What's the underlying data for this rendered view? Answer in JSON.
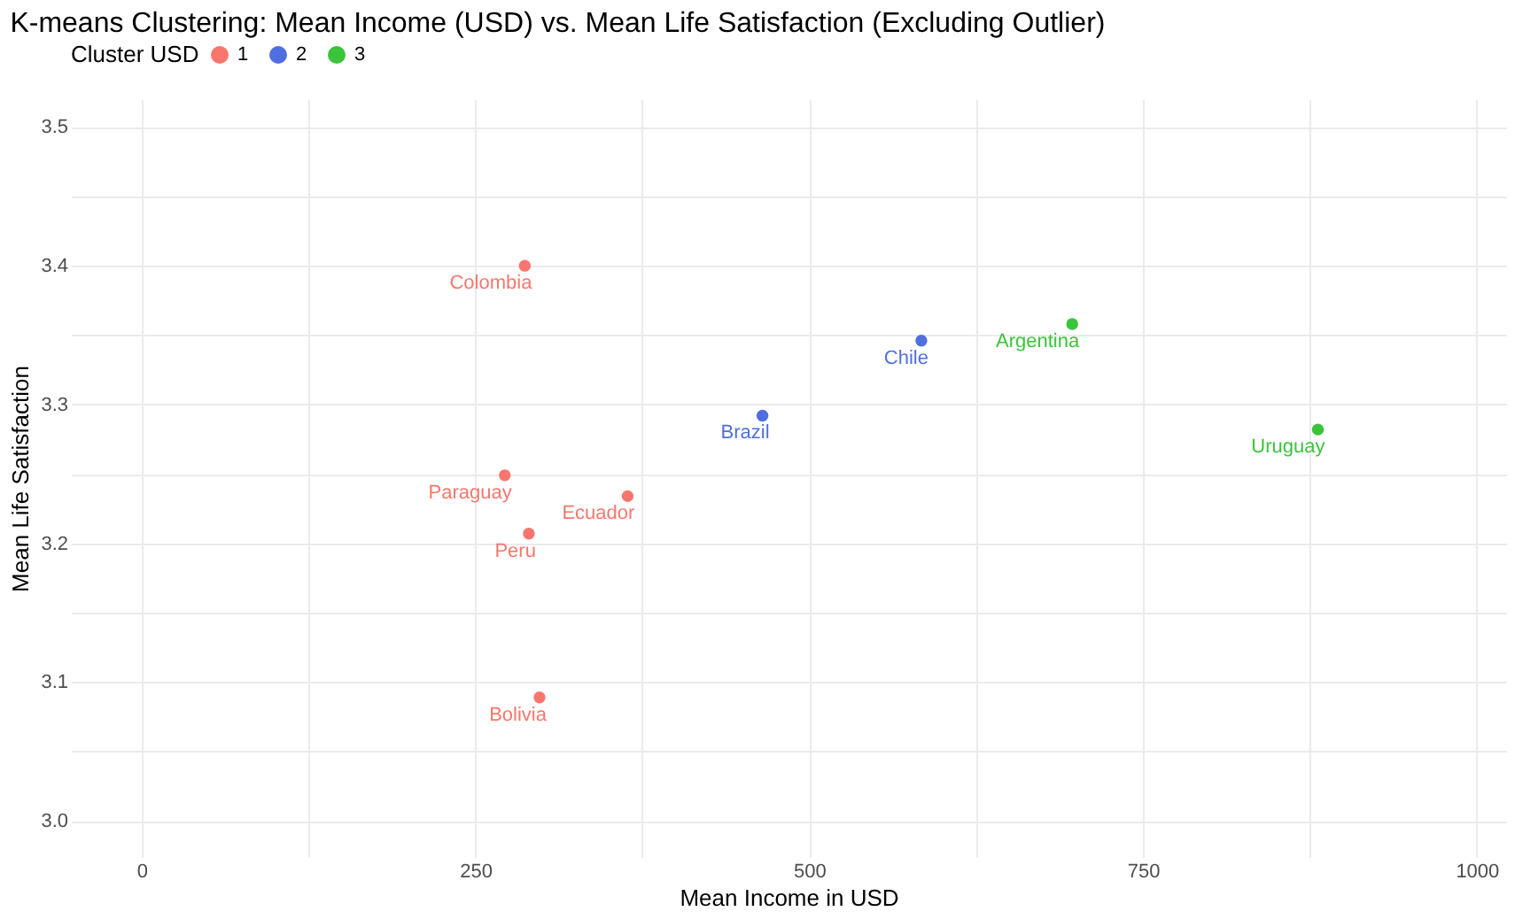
{
  "chart_data": {
    "type": "scatter",
    "title": "K-means Clustering: Mean Income (USD) vs. Mean Life Satisfaction (Excluding Outlier)",
    "xlabel": "Mean Income in USD",
    "ylabel": "Mean Life Satisfaction",
    "legend_title": "Cluster USD",
    "series": [
      {
        "name": "1",
        "color": "#f8766d",
        "x": [
          287,
          272,
          290,
          364,
          298
        ],
        "values": [
          3.4,
          3.249,
          3.207,
          3.234,
          3.089
        ]
      },
      {
        "name": "2",
        "color": "#4f6fe0",
        "x": [
          465,
          584
        ],
        "values": [
          3.292,
          3.346
        ]
      },
      {
        "name": "3",
        "color": "#39c43a",
        "x": [
          697,
          881
        ],
        "values": [
          3.358,
          3.282
        ]
      }
    ],
    "annotations": [
      {
        "text": "Colombia",
        "x": 287,
        "y": 3.4
      },
      {
        "text": "Paraguay",
        "x": 272,
        "y": 3.249
      },
      {
        "text": "Peru",
        "x": 290,
        "y": 3.207
      },
      {
        "text": "Ecuador",
        "x": 364,
        "y": 3.234
      },
      {
        "text": "Bolivia",
        "x": 298,
        "y": 3.089
      },
      {
        "text": "Brazil",
        "x": 465,
        "y": 3.292
      },
      {
        "text": "Chile",
        "x": 584,
        "y": 3.346
      },
      {
        "text": "Argentina",
        "x": 697,
        "y": 3.358
      },
      {
        "text": "Uruguay",
        "x": 881,
        "y": 3.282
      }
    ],
    "xlim": [
      -53,
      1022
    ],
    "ylim": [
      2.974,
      3.52
    ],
    "xticks": [
      0,
      {
        "value": 125,
        "label": null
      },
      250,
      {
        "value": 375,
        "label": null
      },
      500,
      {
        "value": 625,
        "label": null
      },
      750,
      {
        "value": 875,
        "label": null
      },
      1000
    ],
    "yticks": [
      {
        "value": 3.0,
        "label": "3.0"
      },
      {
        "value": 3.05,
        "label": null
      },
      {
        "value": 3.1,
        "label": "3.1"
      },
      {
        "value": 3.15,
        "label": null
      },
      {
        "value": 3.2,
        "label": "3.2"
      },
      {
        "value": 3.25,
        "label": null
      },
      {
        "value": 3.3,
        "label": "3.3"
      },
      {
        "value": 3.35,
        "label": null
      },
      {
        "value": 3.4,
        "label": "3.4"
      },
      {
        "value": 3.45,
        "label": null
      },
      {
        "value": 3.5,
        "label": "3.5"
      }
    ],
    "grid": true,
    "legend": "top",
    "marker": "circle"
  }
}
